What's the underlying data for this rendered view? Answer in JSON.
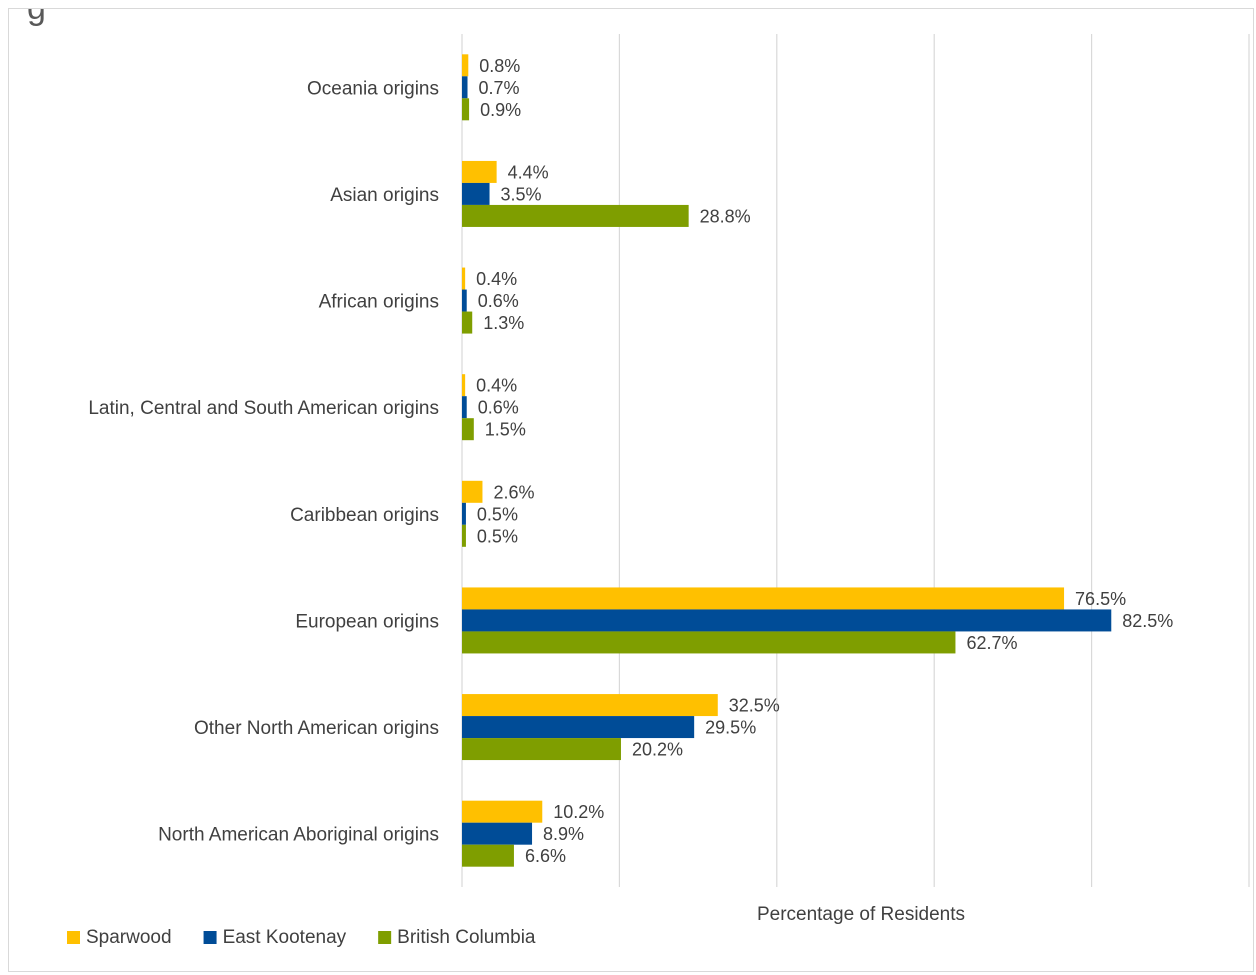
{
  "chart_data": {
    "type": "bar",
    "orientation": "horizontal",
    "title_fragment": "g",
    "xlabel": "Percentage of Residents",
    "ylabel": "",
    "xlim": [
      0,
      100
    ],
    "grid": true,
    "legend_position": "bottom-left",
    "categories": [
      "Oceania origins",
      "Asian origins",
      "African origins",
      "Latin, Central and South American origins",
      "Caribbean origins",
      "European origins",
      "Other North American origins",
      "North American Aboriginal origins"
    ],
    "series": [
      {
        "name": "Sparwood",
        "color": "#FFC000",
        "values": [
          0.8,
          4.4,
          0.4,
          0.4,
          2.6,
          76.5,
          32.5,
          10.2
        ],
        "labels": [
          "0.8%",
          "4.4%",
          "0.4%",
          "0.4%",
          "2.6%",
          "76.5%",
          "32.5%",
          "10.2%"
        ]
      },
      {
        "name": "East Kootenay",
        "color": "#004C97",
        "values": [
          0.7,
          3.5,
          0.6,
          0.6,
          0.5,
          82.5,
          29.5,
          8.9
        ],
        "labels": [
          "0.7%",
          "3.5%",
          "0.6%",
          "0.6%",
          "0.5%",
          "82.5%",
          "29.5%",
          "8.9%"
        ]
      },
      {
        "name": "British Columbia",
        "color": "#7F9E00",
        "values": [
          0.9,
          28.8,
          1.3,
          1.5,
          0.5,
          62.7,
          20.2,
          6.6
        ],
        "labels": [
          "0.9%",
          "28.8%",
          "1.3%",
          "1.5%",
          "0.5%",
          "62.7%",
          "20.2%",
          "6.6%"
        ]
      }
    ]
  }
}
